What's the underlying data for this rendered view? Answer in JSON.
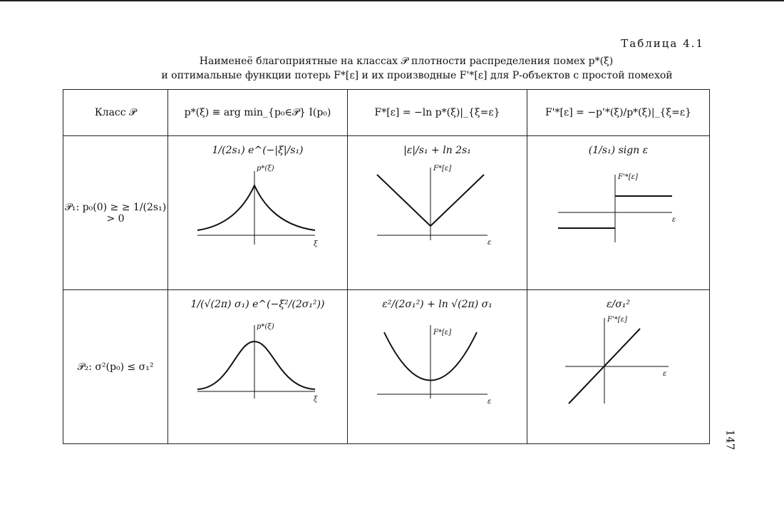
{
  "table_number": "Таблица 4.1",
  "caption_line1": "Наименеё благоприятные на классах 𝒫 плотности распределения помех p*(ξ)",
  "caption_line2": "и оптимальные функции потерь F*[ε] и их производные F'*[ε] для Р-объектов с простой помехой",
  "headers": [
    "Класс 𝒫",
    "p*(ξ) ≡ arg min_{p₀∈𝒫} I(p₀)",
    "F*[ε] = −ln p*(ξ)|_{ξ=ε}",
    "F'*[ε] = −p'*(ξ)/p*(ξ)|_{ξ=ε}"
  ],
  "rows": [
    {
      "class": "𝒫₁: p₀(0) ≥ ≥ 1/(2s₁) > 0",
      "density": "1/(2s₁) e^(−|ξ|/s₁)",
      "loss": "|ε|/s₁ + ln 2s₁",
      "derivative": "(1/s₁) sign ε"
    },
    {
      "class": "𝒫₂: σ²(p₀) ≤ σ₁²",
      "density": "1/(√(2π) σ₁) e^(−ξ²/(2σ₁²))",
      "loss": "ε²/(2σ₁²) + ln √(2π) σ₁",
      "derivative": "ε/σ₁²"
    }
  ],
  "plot_labels": {
    "density_axis": "p*(ξ)",
    "xi": "ξ",
    "loss_axis": "F*[ε]",
    "eps": "ε",
    "deriv_axis": "F'*[ε]"
  },
  "page_number": "147"
}
